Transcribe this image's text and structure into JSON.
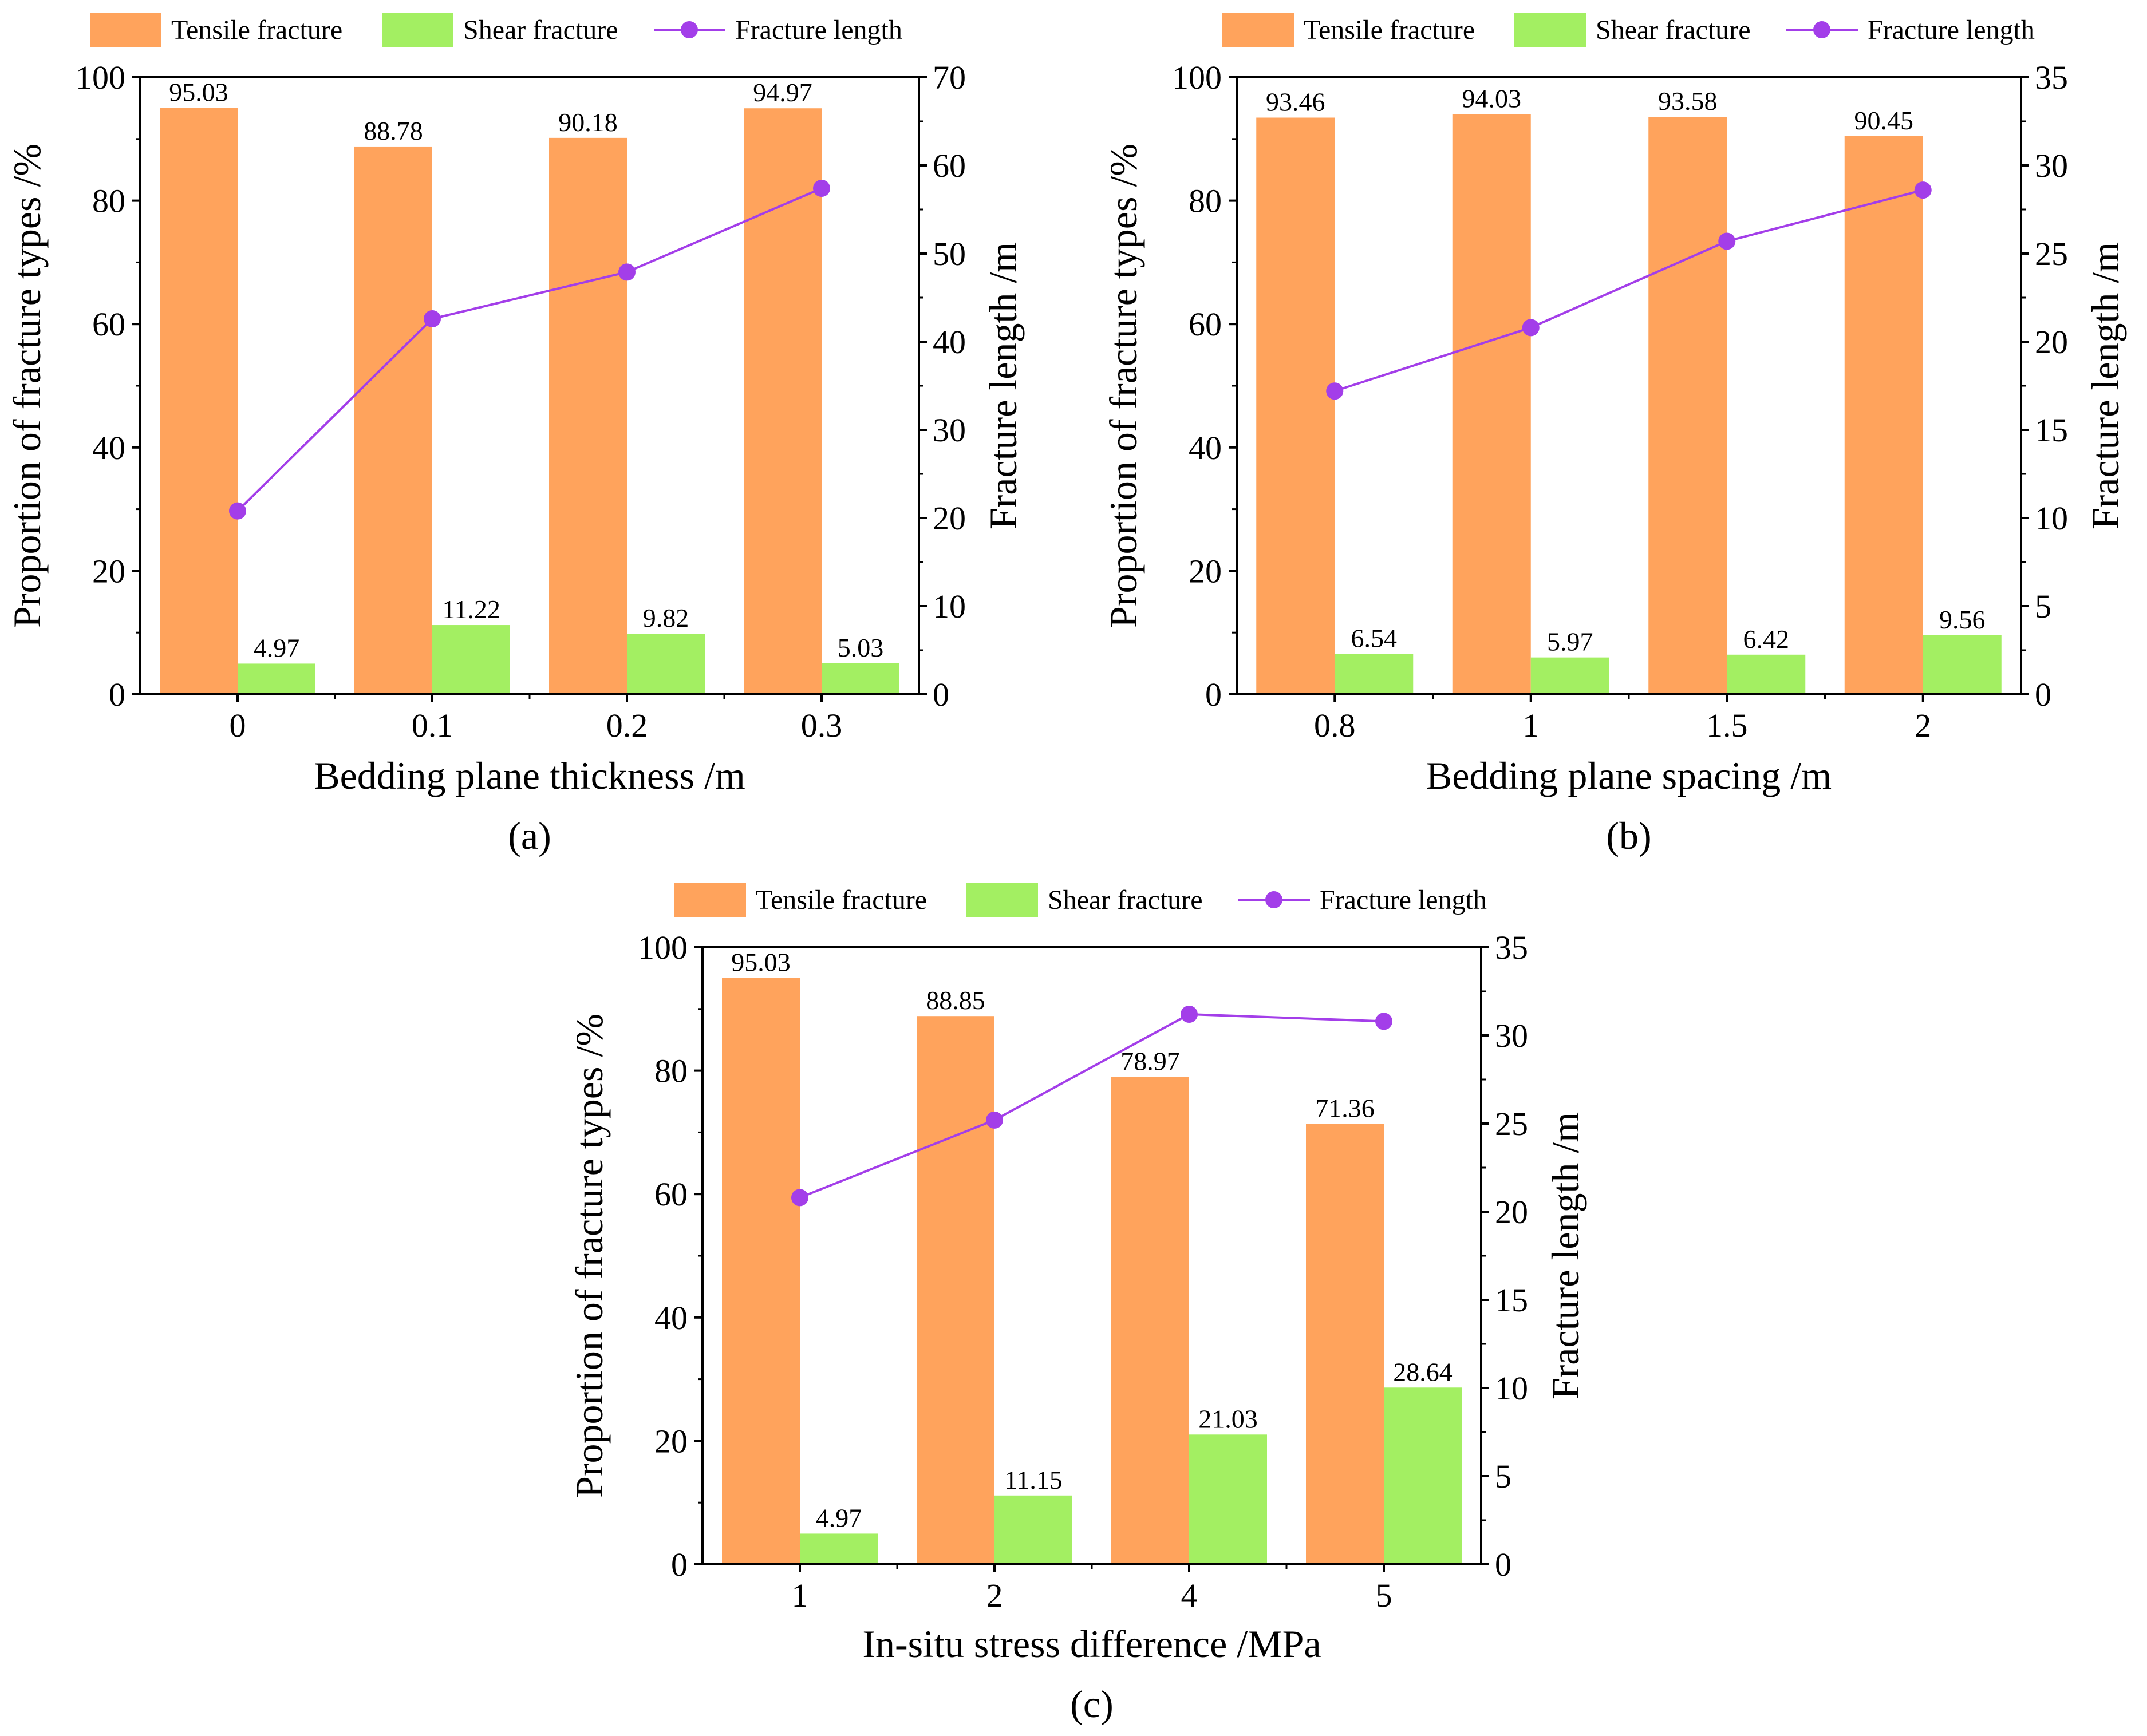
{
  "colors": {
    "tensile": "#ffa35c",
    "shear": "#a3ef62",
    "length": "#a33ee9",
    "axis": "#000000"
  },
  "legend": {
    "tensile_label": "Tensile fracture",
    "shear_label": "Shear fracture",
    "length_label": "Fracture length"
  },
  "chart_data": [
    {
      "id": "a",
      "type": "bar",
      "panel_label": "(a)",
      "xlabel": "Bedding plane thickness /m",
      "ylabel": "Proportion of fracture types /%",
      "y2label": "Fracture length /m",
      "categories": [
        "0",
        "0.1",
        "0.2",
        "0.3"
      ],
      "ylim": [
        0,
        100
      ],
      "yticks": [
        0,
        20,
        40,
        60,
        80,
        100
      ],
      "y2lim": [
        0,
        70
      ],
      "y2ticks": [
        0,
        10,
        20,
        30,
        40,
        50,
        60,
        70
      ],
      "series": [
        {
          "name": "Tensile fracture",
          "values": [
            95.03,
            88.78,
            90.18,
            94.97
          ],
          "value_labels": [
            "95.03",
            "88.78",
            "90.18",
            "94.97"
          ]
        },
        {
          "name": "Shear fracture",
          "values": [
            4.97,
            11.22,
            9.82,
            5.03
          ],
          "value_labels": [
            "4.97",
            "11.22",
            "9.82",
            "5.03"
          ]
        },
        {
          "name": "Fracture length",
          "type": "line",
          "axis": "right",
          "values": [
            20.8,
            42.6,
            47.9,
            57.4
          ]
        }
      ]
    },
    {
      "id": "b",
      "type": "bar",
      "panel_label": "(b)",
      "xlabel": "Bedding plane spacing /m",
      "ylabel": "Proportion of fracture types /%",
      "y2label": "Fracture length /m",
      "categories": [
        "0.8",
        "1",
        "1.5",
        "2"
      ],
      "ylim": [
        0,
        100
      ],
      "yticks": [
        0,
        20,
        40,
        60,
        80,
        100
      ],
      "y2lim": [
        0,
        35
      ],
      "y2ticks": [
        0,
        5,
        10,
        15,
        20,
        25,
        30,
        35
      ],
      "series": [
        {
          "name": "Tensile fracture",
          "values": [
            93.46,
            94.03,
            93.58,
            90.45
          ],
          "value_labels": [
            "93.46",
            "94.03",
            "93.58",
            "90.45"
          ]
        },
        {
          "name": "Shear fracture",
          "values": [
            6.54,
            5.97,
            6.42,
            9.56
          ],
          "value_labels": [
            "6.54",
            "5.97",
            "6.42",
            "9.56"
          ]
        },
        {
          "name": "Fracture length",
          "type": "line",
          "axis": "right",
          "values": [
            17.2,
            20.8,
            25.7,
            28.6
          ]
        }
      ]
    },
    {
      "id": "c",
      "type": "bar",
      "panel_label": "(c)",
      "xlabel": "In-situ stress difference /MPa",
      "ylabel": "Proportion of fracture types /%",
      "y2label": "Fracture length /m",
      "categories": [
        "1",
        "2",
        "4",
        "5"
      ],
      "ylim": [
        0,
        100
      ],
      "yticks": [
        0,
        20,
        40,
        60,
        80,
        100
      ],
      "y2lim": [
        0,
        35
      ],
      "y2ticks": [
        0,
        5,
        10,
        15,
        20,
        25,
        30,
        35
      ],
      "series": [
        {
          "name": "Tensile fracture",
          "values": [
            95.03,
            88.85,
            78.97,
            71.36
          ],
          "value_labels": [
            "95.03",
            "88.85",
            "78.97",
            "71.36"
          ]
        },
        {
          "name": "Shear fracture",
          "values": [
            4.97,
            11.15,
            21.03,
            28.64
          ],
          "value_labels": [
            "4.97",
            "11.15",
            "21.03",
            "28.64"
          ]
        },
        {
          "name": "Fracture length",
          "type": "line",
          "axis": "right",
          "values": [
            20.8,
            25.2,
            31.2,
            30.8
          ]
        }
      ]
    }
  ]
}
